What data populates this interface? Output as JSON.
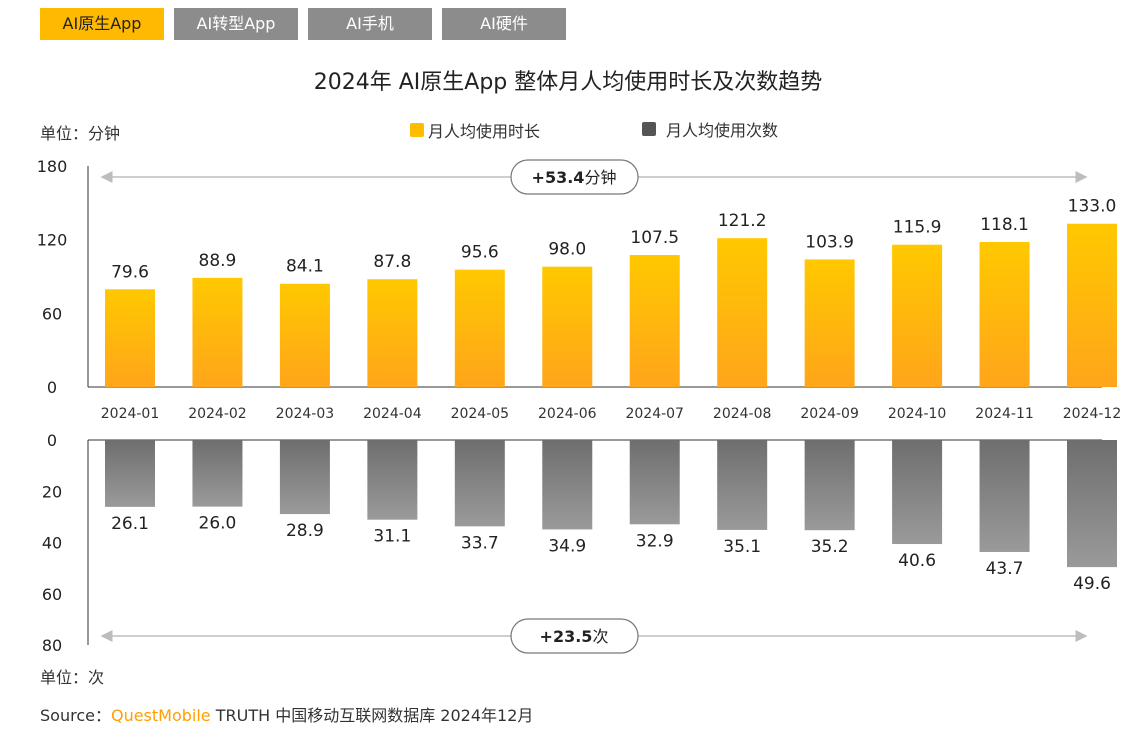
{
  "tabs": [
    {
      "label": "AI原生App",
      "active": true
    },
    {
      "label": "AI转型App",
      "active": false
    },
    {
      "label": "AI手机",
      "active": false
    },
    {
      "label": "AI硬件",
      "active": false
    }
  ],
  "source": {
    "prefix": "Source：",
    "brand": "QuestMobile",
    "rest": " TRUTH 中国移动互联网数据库 2024年12月"
  },
  "colors": {
    "tab_active": "#ffb900",
    "tab_inactive": "#8c8c8c",
    "bar_top_gradient": [
      "#ffc800",
      "#ffa51a"
    ],
    "bar_bottom_gradient": [
      "#6e6e6e",
      "#9a9a9a"
    ],
    "brand": "#ff9f00"
  },
  "chart_data": [
    {
      "type": "bar",
      "title": "2024年 AI原生App 整体月人均使用时长及次数趋势",
      "unit_label": "单位：分钟",
      "legend": "月人均使用时长",
      "legend_position": "top-center",
      "categories": [
        "2024-01",
        "2024-02",
        "2024-03",
        "2024-04",
        "2024-05",
        "2024-06",
        "2024-07",
        "2024-08",
        "2024-09",
        "2024-10",
        "2024-11",
        "2024-12"
      ],
      "values": [
        79.6,
        88.9,
        84.1,
        87.8,
        95.6,
        98.0,
        107.5,
        121.2,
        103.9,
        115.9,
        118.1,
        133.0
      ],
      "value_labels": [
        "79.6",
        "88.9",
        "84.1",
        "87.8",
        "95.6",
        "98.0",
        "107.5",
        "121.2",
        "103.9",
        "115.9",
        "118.1",
        "133.0"
      ],
      "ylim": [
        0,
        180
      ],
      "yticks": [
        "0",
        "60",
        "120",
        "180"
      ],
      "annotation_bold": "+53.4",
      "annotation_unit": "分钟"
    },
    {
      "type": "bar",
      "orientation": "downward",
      "unit_label": "单位：次",
      "legend": "月人均使用次数",
      "categories": [
        "2024-01",
        "2024-02",
        "2024-03",
        "2024-04",
        "2024-05",
        "2024-06",
        "2024-07",
        "2024-08",
        "2024-09",
        "2024-10",
        "2024-11",
        "2024-12"
      ],
      "values": [
        26.1,
        26.0,
        28.9,
        31.1,
        33.7,
        34.9,
        32.9,
        35.1,
        35.2,
        40.6,
        43.7,
        49.6
      ],
      "value_labels": [
        "26.1",
        "26.0",
        "28.9",
        "31.1",
        "33.7",
        "34.9",
        "32.9",
        "35.1",
        "35.2",
        "40.6",
        "43.7",
        "49.6"
      ],
      "ylim": [
        0,
        80
      ],
      "yticks": [
        "0",
        "20",
        "40",
        "60",
        "80"
      ],
      "annotation_bold": "+23.5",
      "annotation_unit": "次"
    }
  ]
}
